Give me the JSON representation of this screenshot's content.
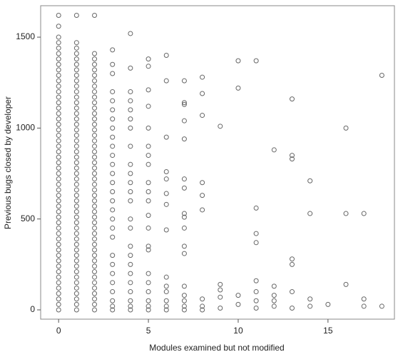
{
  "chart_data": {
    "type": "scatter",
    "x_label": "Modules examined but not modified",
    "y_label": "Previous bugs closed by developer",
    "xlim": [
      -1,
      18.7
    ],
    "ylim": [
      -51,
      1673
    ],
    "xticks": [
      0,
      5,
      10,
      15
    ],
    "yticks": [
      0,
      500,
      1000,
      1500
    ],
    "grid": false,
    "color": "#666666",
    "x": [
      0,
      0,
      0,
      0,
      0,
      0,
      0,
      0,
      0,
      0,
      0,
      0,
      0,
      0,
      0,
      0,
      0,
      0,
      0,
      0,
      0,
      0,
      0,
      0,
      0,
      0,
      0,
      0,
      0,
      0,
      0,
      0,
      0,
      0,
      0,
      0,
      0,
      0,
      0,
      0,
      0,
      0,
      0,
      0,
      0,
      0,
      0,
      0,
      0,
      0,
      0,
      0,
      0,
      1,
      1,
      1,
      1,
      1,
      1,
      1,
      1,
      1,
      1,
      1,
      1,
      1,
      1,
      1,
      1,
      1,
      1,
      1,
      1,
      1,
      1,
      1,
      1,
      1,
      1,
      1,
      1,
      1,
      1,
      1,
      1,
      1,
      1,
      1,
      1,
      1,
      1,
      1,
      1,
      1,
      1,
      1,
      1,
      1,
      1,
      1,
      1,
      1,
      1,
      1,
      2,
      2,
      2,
      2,
      2,
      2,
      2,
      2,
      2,
      2,
      2,
      2,
      2,
      2,
      2,
      2,
      2,
      2,
      2,
      2,
      2,
      2,
      2,
      2,
      2,
      2,
      2,
      2,
      2,
      2,
      2,
      2,
      2,
      2,
      2,
      2,
      2,
      2,
      2,
      2,
      2,
      2,
      2,
      2,
      2,
      2,
      2,
      2,
      2,
      3,
      3,
      3,
      3,
      3,
      3,
      3,
      3,
      3,
      3,
      3,
      3,
      3,
      3,
      3,
      3,
      3,
      3,
      3,
      3,
      3,
      3,
      3,
      3,
      3,
      3,
      3,
      3,
      4,
      4,
      4,
      4,
      4,
      4,
      4,
      4,
      4,
      4,
      4,
      4,
      4,
      4,
      4,
      4,
      4,
      4,
      4,
      4,
      4,
      4,
      4,
      4,
      5,
      5,
      5,
      5,
      5,
      5,
      5,
      5,
      5,
      5,
      5,
      5,
      5,
      5,
      5,
      5,
      5,
      5,
      5,
      5,
      5,
      6,
      6,
      6,
      6,
      6,
      6,
      6,
      6,
      6,
      6,
      6,
      6,
      6,
      6,
      7,
      7,
      7,
      7,
      7,
      7,
      7,
      7,
      7,
      7,
      7,
      7,
      7,
      7,
      7,
      7,
      7,
      8,
      8,
      8,
      8,
      8,
      8,
      8,
      8,
      8,
      9,
      9,
      9,
      9,
      9,
      10,
      10,
      10,
      10,
      11,
      11,
      11,
      11,
      11,
      11,
      11,
      11,
      12,
      12,
      12,
      12,
      12,
      13,
      13,
      13,
      13,
      13,
      13,
      13,
      14,
      14,
      14,
      14,
      15,
      16,
      16,
      16,
      17,
      17,
      17,
      18,
      18
    ],
    "values": [
      0,
      30,
      60,
      90,
      120,
      150,
      180,
      210,
      240,
      270,
      300,
      330,
      360,
      390,
      420,
      450,
      480,
      510,
      540,
      570,
      600,
      630,
      660,
      690,
      720,
      750,
      780,
      810,
      840,
      870,
      900,
      930,
      960,
      990,
      1020,
      1050,
      1080,
      1110,
      1140,
      1170,
      1200,
      1230,
      1260,
      1290,
      1320,
      1350,
      1380,
      1410,
      1440,
      1470,
      1500,
      1560,
      1620,
      0,
      30,
      60,
      90,
      120,
      150,
      180,
      210,
      240,
      270,
      300,
      330,
      360,
      390,
      420,
      450,
      480,
      510,
      540,
      570,
      600,
      630,
      660,
      690,
      720,
      750,
      780,
      810,
      840,
      870,
      900,
      930,
      960,
      990,
      1020,
      1050,
      1080,
      1110,
      1140,
      1170,
      1200,
      1230,
      1260,
      1290,
      1320,
      1350,
      1380,
      1410,
      1440,
      1470,
      1620,
      0,
      30,
      60,
      90,
      120,
      150,
      180,
      210,
      240,
      270,
      300,
      330,
      360,
      390,
      420,
      450,
      480,
      510,
      540,
      570,
      600,
      630,
      660,
      690,
      720,
      750,
      780,
      810,
      840,
      870,
      900,
      930,
      960,
      990,
      1020,
      1050,
      1080,
      1110,
      1140,
      1170,
      1200,
      1230,
      1260,
      1290,
      1320,
      1350,
      1380,
      1410,
      1620,
      0,
      20,
      50,
      100,
      150,
      200,
      250,
      300,
      400,
      450,
      500,
      550,
      600,
      650,
      700,
      750,
      800,
      850,
      900,
      950,
      1000,
      1050,
      1100,
      1150,
      1200,
      1300,
      1350,
      1430,
      0,
      20,
      50,
      100,
      150,
      200,
      250,
      300,
      350,
      450,
      500,
      600,
      650,
      700,
      750,
      800,
      900,
      1000,
      1050,
      1100,
      1150,
      1200,
      1330,
      1520,
      0,
      20,
      50,
      100,
      150,
      200,
      330,
      350,
      450,
      520,
      600,
      650,
      700,
      800,
      850,
      900,
      1000,
      1120,
      1210,
      1340,
      1380,
      0,
      20,
      50,
      100,
      130,
      180,
      440,
      580,
      640,
      720,
      760,
      950,
      1260,
      1400,
      0,
      20,
      50,
      80,
      130,
      310,
      350,
      450,
      510,
      530,
      670,
      720,
      940,
      1040,
      1130,
      1140,
      1260,
      0,
      20,
      60,
      550,
      630,
      700,
      1070,
      1190,
      1280,
      10,
      70,
      110,
      140,
      1010,
      30,
      80,
      1220,
      1370,
      10,
      50,
      100,
      160,
      370,
      420,
      560,
      1370,
      20,
      50,
      80,
      130,
      880,
      10,
      100,
      250,
      280,
      830,
      850,
      1160,
      20,
      60,
      530,
      710,
      30,
      140,
      530,
      1000,
      20,
      60,
      530,
      20,
      1290
    ]
  }
}
